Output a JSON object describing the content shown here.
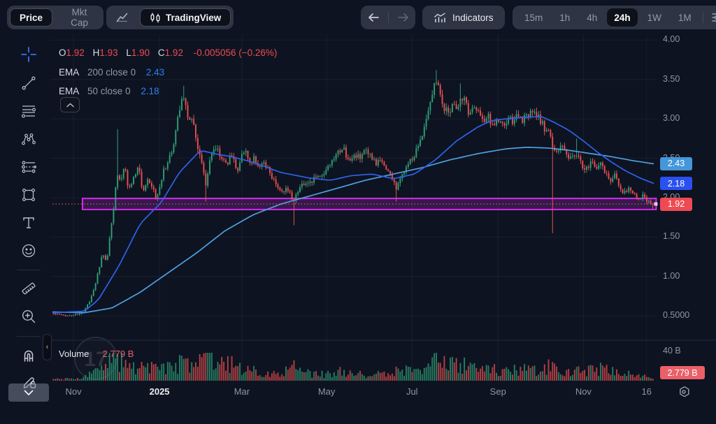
{
  "toolbar": {
    "price_label": "Price",
    "mktcap_label": "Mkt Cap",
    "tradingview_label": "TradingView",
    "indicators_label": "Indicators",
    "timeframes": [
      "15m",
      "1h",
      "4h",
      "24h",
      "1W",
      "1M"
    ],
    "selected_timeframe": "24h"
  },
  "legend": {
    "o": "O",
    "o_v": "1.92",
    "h": "H",
    "h_v": "1.93",
    "l": "L",
    "l_v": "1.90",
    "c": "C",
    "c_v": "1.92",
    "change": "-0.005056 (−0.26%)",
    "ema200_name": "EMA",
    "ema200_params": "200 close 0",
    "ema200_value": "2.43",
    "ema50_name": "EMA",
    "ema50_params": "50 close 0",
    "ema50_value": "2.18"
  },
  "volume_pane": {
    "label": "Volume",
    "value": "2.779 B"
  },
  "watermark": "17",
  "chart_data": {
    "type": "candlestick",
    "current_ohlc": {
      "open": 1.92,
      "high": 1.93,
      "low": 1.9,
      "close": 1.92,
      "change_abs": -0.005056,
      "change_pct": -0.26
    },
    "last_price": 1.92,
    "last_volume_b": 2.779,
    "price_ticks": [
      [
        "4.00",
        4.0
      ],
      [
        "3.50",
        3.5
      ],
      [
        "3.00",
        3.0
      ],
      [
        "2.50",
        2.5
      ],
      [
        "2.00",
        2.0
      ],
      [
        "1.50",
        1.5
      ],
      [
        "1.00",
        1.0
      ],
      [
        "0.5000",
        0.5
      ]
    ],
    "volume_ticks": [
      [
        "40 B",
        40
      ]
    ],
    "time_ticks": [
      [
        "Nov",
        0.035,
        false
      ],
      [
        "2025",
        0.178,
        true
      ],
      [
        "Mar",
        0.315,
        false
      ],
      [
        "May",
        0.456,
        false
      ],
      [
        "Jul",
        0.598,
        false
      ],
      [
        "Sep",
        0.741,
        false
      ],
      [
        "Nov",
        0.883,
        false
      ],
      [
        "16",
        0.988,
        false
      ]
    ],
    "axis_badges": [
      {
        "label": "2.43",
        "price": 2.43,
        "bg": "#4596db",
        "name": "ema200-price-badge"
      },
      {
        "label": "2.18",
        "price": 2.18,
        "bg": "#2b50f0",
        "name": "ema50-price-badge"
      },
      {
        "label": "1.92",
        "price": 1.92,
        "bg": "#ef4a53",
        "name": "last-price-badge"
      }
    ],
    "volume_badge": {
      "label": "2.779 B",
      "bg": "#ea5f68"
    },
    "support_zone": {
      "x1": 0.05,
      "x2": 1.004,
      "top": 1.99,
      "bottom": 1.85
    },
    "close_path": [
      [
        0,
        0.53
      ],
      [
        0.023,
        0.5
      ],
      [
        0.05,
        0.53
      ],
      [
        0.062,
        0.68
      ],
      [
        0.073,
        0.95
      ],
      [
        0.083,
        1.28
      ],
      [
        0.09,
        1.18
      ],
      [
        0.097,
        1.6
      ],
      [
        0.105,
        2.1
      ],
      [
        0.109,
        2.35
      ],
      [
        0.113,
        2.2
      ],
      [
        0.12,
        2.45
      ],
      [
        0.126,
        2.1
      ],
      [
        0.135,
        2.25
      ],
      [
        0.143,
        2.4
      ],
      [
        0.151,
        2.05
      ],
      [
        0.158,
        2.2
      ],
      [
        0.167,
        2.12
      ],
      [
        0.173,
        1.95
      ],
      [
        0.181,
        2.25
      ],
      [
        0.191,
        2.45
      ],
      [
        0.2,
        2.6
      ],
      [
        0.207,
        2.95
      ],
      [
        0.214,
        3.25
      ],
      [
        0.219,
        3.3
      ],
      [
        0.226,
        2.95
      ],
      [
        0.232,
        3.05
      ],
      [
        0.24,
        2.7
      ],
      [
        0.248,
        2.45
      ],
      [
        0.255,
        2.15
      ],
      [
        0.263,
        2.55
      ],
      [
        0.273,
        2.65
      ],
      [
        0.281,
        2.5
      ],
      [
        0.289,
        2.42
      ],
      [
        0.298,
        2.55
      ],
      [
        0.308,
        2.35
      ],
      [
        0.318,
        2.62
      ],
      [
        0.327,
        2.45
      ],
      [
        0.336,
        2.5
      ],
      [
        0.345,
        2.38
      ],
      [
        0.354,
        2.42
      ],
      [
        0.364,
        2.28
      ],
      [
        0.373,
        2.18
      ],
      [
        0.382,
        2.05
      ],
      [
        0.392,
        2.12
      ],
      [
        0.4,
        1.98
      ],
      [
        0.408,
        2.1
      ],
      [
        0.418,
        2.2
      ],
      [
        0.427,
        2.15
      ],
      [
        0.436,
        2.28
      ],
      [
        0.446,
        2.25
      ],
      [
        0.456,
        2.35
      ],
      [
        0.464,
        2.42
      ],
      [
        0.474,
        2.55
      ],
      [
        0.485,
        2.6
      ],
      [
        0.495,
        2.45
      ],
      [
        0.503,
        2.55
      ],
      [
        0.511,
        2.5
      ],
      [
        0.52,
        2.58
      ],
      [
        0.53,
        2.5
      ],
      [
        0.538,
        2.42
      ],
      [
        0.547,
        2.48
      ],
      [
        0.556,
        2.35
      ],
      [
        0.565,
        2.25
      ],
      [
        0.573,
        2.1
      ],
      [
        0.581,
        2.3
      ],
      [
        0.591,
        2.42
      ],
      [
        0.6,
        2.5
      ],
      [
        0.608,
        2.65
      ],
      [
        0.616,
        2.85
      ],
      [
        0.623,
        3.05
      ],
      [
        0.63,
        3.3
      ],
      [
        0.637,
        3.5
      ],
      [
        0.644,
        3.4
      ],
      [
        0.651,
        3.15
      ],
      [
        0.658,
        3.05
      ],
      [
        0.665,
        3.22
      ],
      [
        0.672,
        3.1
      ],
      [
        0.679,
        3.3
      ],
      [
        0.687,
        3.2
      ],
      [
        0.694,
        3.05
      ],
      [
        0.702,
        3.18
      ],
      [
        0.71,
        3.08
      ],
      [
        0.717,
        2.95
      ],
      [
        0.725,
        3.02
      ],
      [
        0.733,
        2.92
      ],
      [
        0.741,
        2.98
      ],
      [
        0.75,
        2.9
      ],
      [
        0.758,
        3
      ],
      [
        0.766,
        2.95
      ],
      [
        0.774,
        3.05
      ],
      [
        0.782,
        2.98
      ],
      [
        0.792,
        3.05
      ],
      [
        0.801,
        3.08
      ],
      [
        0.81,
        3
      ],
      [
        0.819,
        2.88
      ],
      [
        0.827,
        2.8
      ],
      [
        0.833,
        2.62
      ],
      [
        0.84,
        2.58
      ],
      [
        0.848,
        2.68
      ],
      [
        0.855,
        2.55
      ],
      [
        0.863,
        2.48
      ],
      [
        0.871,
        2.58
      ],
      [
        0.879,
        2.42
      ],
      [
        0.888,
        2.35
      ],
      [
        0.896,
        2.45
      ],
      [
        0.904,
        2.38
      ],
      [
        0.912,
        2.48
      ],
      [
        0.92,
        2.3
      ],
      [
        0.927,
        2.2
      ],
      [
        0.936,
        2.28
      ],
      [
        0.944,
        2.15
      ],
      [
        0.951,
        2.05
      ],
      [
        0.959,
        2.12
      ],
      [
        0.967,
        2.02
      ],
      [
        0.974,
        1.98
      ],
      [
        0.982,
        2.05
      ],
      [
        0.989,
        1.96
      ],
      [
        1,
        1.92
      ]
    ],
    "wick_events": [
      {
        "f": 0.109,
        "high": 2.87
      },
      {
        "f": 0.219,
        "high": 3.42
      },
      {
        "f": 0.255,
        "low": 1.95
      },
      {
        "f": 0.4,
        "low": 1.65
      },
      {
        "f": 0.485,
        "high": 2.68
      },
      {
        "f": 0.573,
        "low": 1.95
      },
      {
        "f": 0.637,
        "high": 3.62
      },
      {
        "f": 0.679,
        "high": 3.45
      },
      {
        "f": 0.833,
        "low": 1.55
      },
      {
        "f": 0.871,
        "high": 2.75
      },
      {
        "f": 1,
        "low": 1.85
      }
    ],
    "ema50_path": [
      [
        0,
        0.54
      ],
      [
        0.053,
        0.56
      ],
      [
        0.076,
        0.7
      ],
      [
        0.111,
        1.14
      ],
      [
        0.146,
        1.67
      ],
      [
        0.181,
        1.94
      ],
      [
        0.211,
        2.32
      ],
      [
        0.246,
        2.6
      ],
      [
        0.275,
        2.55
      ],
      [
        0.298,
        2.52
      ],
      [
        0.333,
        2.45
      ],
      [
        0.38,
        2.32
      ],
      [
        0.427,
        2.25
      ],
      [
        0.462,
        2.22
      ],
      [
        0.497,
        2.28
      ],
      [
        0.532,
        2.3
      ],
      [
        0.567,
        2.24
      ],
      [
        0.602,
        2.3
      ],
      [
        0.637,
        2.48
      ],
      [
        0.672,
        2.72
      ],
      [
        0.708,
        2.9
      ],
      [
        0.731,
        2.98
      ],
      [
        0.754,
        3.0
      ],
      [
        0.784,
        3.02
      ],
      [
        0.813,
        3.03
      ],
      [
        0.836,
        2.95
      ],
      [
        0.86,
        2.85
      ],
      [
        0.883,
        2.72
      ],
      [
        0.906,
        2.58
      ],
      [
        0.93,
        2.45
      ],
      [
        0.953,
        2.34
      ],
      [
        0.977,
        2.25
      ],
      [
        1,
        2.18
      ]
    ],
    "ema200_path": [
      [
        0,
        0.55
      ],
      [
        0.053,
        0.54
      ],
      [
        0.099,
        0.6
      ],
      [
        0.146,
        0.8
      ],
      [
        0.193,
        1.05
      ],
      [
        0.24,
        1.3
      ],
      [
        0.287,
        1.58
      ],
      [
        0.333,
        1.78
      ],
      [
        0.38,
        1.92
      ],
      [
        0.427,
        2.02
      ],
      [
        0.474,
        2.12
      ],
      [
        0.52,
        2.22
      ],
      [
        0.567,
        2.3
      ],
      [
        0.614,
        2.38
      ],
      [
        0.661,
        2.48
      ],
      [
        0.708,
        2.56
      ],
      [
        0.754,
        2.62
      ],
      [
        0.789,
        2.64
      ],
      [
        0.825,
        2.63
      ],
      [
        0.86,
        2.6
      ],
      [
        0.895,
        2.56
      ],
      [
        0.93,
        2.52
      ],
      [
        0.965,
        2.47
      ],
      [
        1,
        2.43
      ]
    ],
    "volume_path_b": [
      [
        0,
        2
      ],
      [
        0.041,
        3
      ],
      [
        0.064,
        8
      ],
      [
        0.088,
        25
      ],
      [
        0.105,
        30
      ],
      [
        0.123,
        22
      ],
      [
        0.146,
        18
      ],
      [
        0.17,
        15
      ],
      [
        0.193,
        20
      ],
      [
        0.214,
        24
      ],
      [
        0.234,
        20
      ],
      [
        0.254,
        36
      ],
      [
        0.275,
        20
      ],
      [
        0.295,
        24
      ],
      [
        0.316,
        16
      ],
      [
        0.339,
        12
      ],
      [
        0.363,
        10
      ],
      [
        0.386,
        13
      ],
      [
        0.401,
        18
      ],
      [
        0.421,
        10
      ],
      [
        0.444,
        8
      ],
      [
        0.468,
        10
      ],
      [
        0.485,
        14
      ],
      [
        0.509,
        9
      ],
      [
        0.532,
        8
      ],
      [
        0.556,
        10
      ],
      [
        0.577,
        14
      ],
      [
        0.596,
        12
      ],
      [
        0.614,
        16
      ],
      [
        0.632,
        24
      ],
      [
        0.643,
        28
      ],
      [
        0.661,
        20
      ],
      [
        0.679,
        22
      ],
      [
        0.696,
        16
      ],
      [
        0.719,
        13
      ],
      [
        0.743,
        15
      ],
      [
        0.766,
        13
      ],
      [
        0.789,
        16
      ],
      [
        0.813,
        11
      ],
      [
        0.833,
        22
      ],
      [
        0.848,
        14
      ],
      [
        0.866,
        16
      ],
      [
        0.883,
        11
      ],
      [
        0.901,
        14
      ],
      [
        0.918,
        16
      ],
      [
        0.936,
        11
      ],
      [
        0.953,
        9
      ],
      [
        0.971,
        7
      ],
      [
        0.988,
        5
      ],
      [
        1,
        3
      ]
    ],
    "colors": {
      "up": "#2fa077",
      "down": "#ea4f4f",
      "ema50": "#2e62ea",
      "ema200": "#4f9fe0",
      "zone_border": "#d428ea",
      "zone_fill": "rgba(140,40,170,0.32)",
      "last_price_line": "#f0444f",
      "grid": "rgba(255,255,255,0.05)",
      "separator": "#232b3a"
    }
  }
}
